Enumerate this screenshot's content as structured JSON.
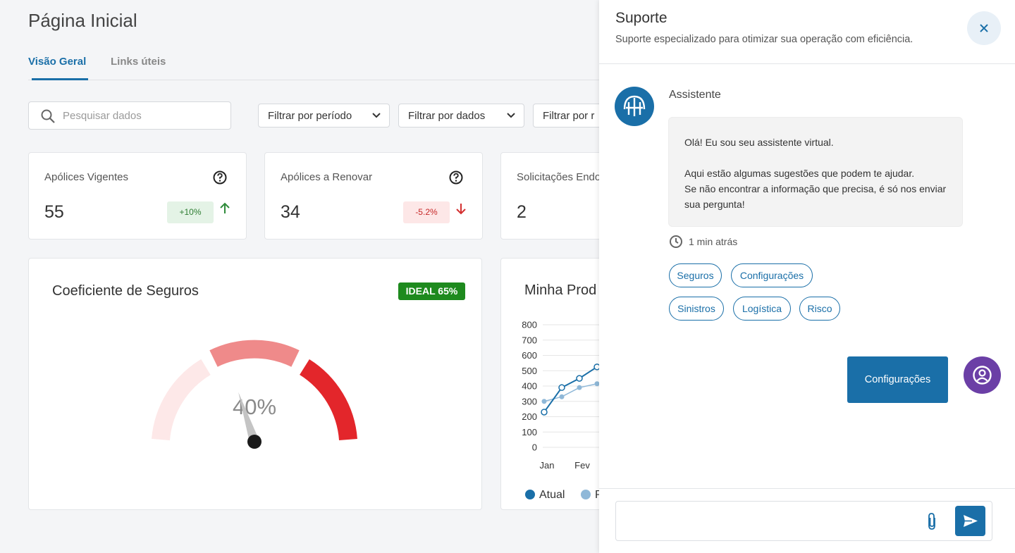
{
  "header": {
    "title": "Página Inicial"
  },
  "tabs": [
    "Visão Geral",
    "Links úteis"
  ],
  "search": {
    "placeholder": "Pesquisar dados"
  },
  "filters": [
    "Filtrar por período",
    "Filtrar por dados",
    "Filtrar por r"
  ],
  "cards": [
    {
      "title": "Apólices Vigentes",
      "value": 55,
      "change": "+10%"
    },
    {
      "title": "Apólices a Renovar",
      "value": 34,
      "change": "-5.2%"
    },
    {
      "title": "Solicitações Endo",
      "value": 2
    }
  ],
  "gauge": {
    "title": "Coeficiente de Seguros",
    "badge": "IDEAL 65%",
    "value": 40,
    "value_label": "40%"
  },
  "chart": {
    "type": "line",
    "title": "Minha Prod",
    "categories": [
      "Jan",
      null,
      "Fev",
      null
    ],
    "ylim": [
      0,
      800
    ],
    "yticks": [
      0,
      100,
      200,
      300,
      400,
      500,
      600,
      700,
      800
    ],
    "grid": true,
    "series": [
      {
        "name": "Atual",
        "color": "#1a6fa8",
        "values": [
          230,
          390,
          450,
          525
        ]
      },
      {
        "name": "P",
        "color": "#8fb8d8",
        "values": [
          300,
          330,
          390,
          415
        ]
      }
    ]
  },
  "support": {
    "title": "Suporte",
    "subtitle": "Suporte especializado para otimizar sua operação com eficiência.",
    "assistant": "Assistente",
    "message": [
      "Olá! Eu sou seu assistente virtual.",
      "Aqui estão algumas sugestões que podem te ajudar.",
      "Se não encontrar a informação que precisa, é só nos enviar sua pergunta!"
    ],
    "time": "1 min atrás",
    "suggestions": [
      "Seguros",
      "Configurações",
      "Sinistros",
      "Logística",
      "Risco"
    ],
    "user_message": "Configurações"
  }
}
